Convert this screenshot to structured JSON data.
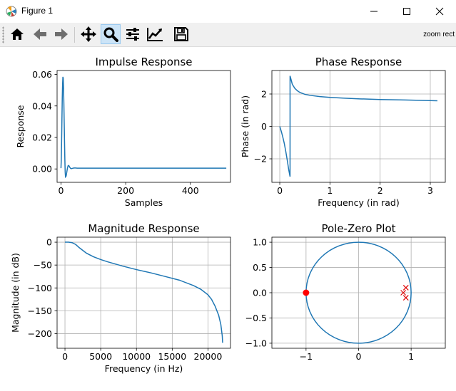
{
  "window": {
    "title": "Figure 1",
    "app_icon": "matplotlib-icon",
    "controls": [
      "minimize-icon",
      "maximize-icon",
      "close-icon"
    ]
  },
  "toolbar": {
    "buttons": [
      {
        "name": "home-button",
        "icon": "home-icon",
        "active": false
      },
      {
        "name": "back-button",
        "icon": "arrow-left-icon",
        "active": false
      },
      {
        "name": "forward-button",
        "icon": "arrow-right-icon",
        "active": false
      },
      {
        "name": "pan-button",
        "icon": "move-icon",
        "active": false
      },
      {
        "name": "zoom-button",
        "icon": "magnifier-icon",
        "active": true
      },
      {
        "name": "subplots-button",
        "icon": "sliders-icon",
        "active": false
      },
      {
        "name": "edit-axes-button",
        "icon": "line-chart-icon",
        "active": false
      },
      {
        "name": "save-button",
        "icon": "floppy-disk-icon",
        "active": false
      }
    ],
    "mode_text": "zoom rect"
  },
  "colors": {
    "line": "#1f77b4",
    "zero": "#ff0000",
    "pole": "#dd0000",
    "grid": "#b0b0b0",
    "active_button": "#cce4f7"
  },
  "chart_data": [
    {
      "type": "line",
      "title": "Impulse Response",
      "xlabel": "Samples",
      "ylabel": "Response",
      "xlim": [
        -12,
        524
      ],
      "ylim": [
        -0.0085,
        0.0625
      ],
      "xticks": [
        0,
        200,
        400
      ],
      "xtick_labels": [
        "0",
        "200",
        "400"
      ],
      "yticks": [
        0,
        0.02,
        0.04,
        0.06
      ],
      "ytick_labels": [
        "0.00",
        "0.02",
        "0.04",
        "0.06"
      ],
      "grid": false,
      "series": [
        {
          "x": [
            0,
            1,
            2,
            3,
            4,
            5,
            6,
            7,
            8,
            9,
            10,
            11,
            12,
            13,
            14,
            16,
            18,
            20,
            22,
            24,
            26,
            28,
            30,
            33,
            36,
            40,
            45,
            50,
            60,
            80,
            120,
            200,
            300,
            400,
            511
          ],
          "y": [
            0.0005,
            0.006,
            0.018,
            0.032,
            0.045,
            0.054,
            0.0585,
            0.0575,
            0.051,
            0.041,
            0.029,
            0.017,
            0.006,
            -0.002,
            -0.005,
            -0.0045,
            -0.002,
            0.0005,
            0.002,
            0.0022,
            0.0015,
            0.0008,
            0.0003,
            0.0002,
            0.0004,
            0.0006,
            0.0006,
            0.0005,
            0.0005,
            0.0005,
            0.0005,
            0.0005,
            0.0005,
            0.0005,
            0.0005
          ]
        }
      ]
    },
    {
      "type": "line",
      "title": "Phase Response",
      "xlabel": "Frequency (in rad)",
      "ylabel": "Phase (in rad)",
      "xlim": [
        -0.157,
        3.299
      ],
      "ylim": [
        -3.45,
        3.45
      ],
      "xticks": [
        0,
        1,
        2,
        3
      ],
      "xtick_labels": [
        "0",
        "1",
        "2",
        "3"
      ],
      "yticks": [
        -2,
        0,
        2
      ],
      "ytick_labels": [
        "−2",
        "0",
        "2"
      ],
      "grid": true,
      "series": [
        {
          "x": [
            0,
            0.03,
            0.06,
            0.09,
            0.12,
            0.15,
            0.18,
            0.205,
            0.2051,
            0.22,
            0.25,
            0.3,
            0.35,
            0.4,
            0.5,
            0.6,
            0.8,
            1.0,
            1.3,
            1.6,
            2.0,
            2.5,
            3.1416
          ],
          "y": [
            0,
            -0.3,
            -0.65,
            -1.05,
            -1.55,
            -2.1,
            -2.7,
            -3.1,
            3.12,
            2.95,
            2.6,
            2.35,
            2.2,
            2.1,
            1.98,
            1.92,
            1.84,
            1.79,
            1.74,
            1.7,
            1.66,
            1.63,
            1.58
          ]
        }
      ]
    },
    {
      "type": "line",
      "title": "Magnitude Response",
      "xlabel": "Frequency (in Hz)",
      "ylabel": "Magnitude (in dB)",
      "xlim": [
        -1102,
        23152
      ],
      "ylim": [
        -232,
        11
      ],
      "xticks": [
        0,
        5000,
        10000,
        15000,
        20000
      ],
      "xtick_labels": [
        "0",
        "5000",
        "10000",
        "15000",
        "20000"
      ],
      "yticks": [
        0,
        -50,
        -100,
        -150,
        -200
      ],
      "ytick_labels": [
        "0",
        "−50",
        "−100",
        "−150",
        "−200"
      ],
      "grid": true,
      "series": [
        {
          "x": [
            0,
            500,
            1000,
            1500,
            2000,
            2500,
            3000,
            4000,
            5000,
            6000,
            8000,
            10000,
            12000,
            14000,
            16000,
            18000,
            19000,
            20000,
            20500,
            21000,
            21500,
            21800,
            22000,
            22050
          ],
          "y": [
            0,
            0,
            -1,
            -5,
            -12,
            -18,
            -24,
            -32,
            -38,
            -43,
            -52,
            -60,
            -67,
            -75,
            -83,
            -95,
            -103,
            -115,
            -125,
            -140,
            -160,
            -180,
            -205,
            -220
          ]
        }
      ]
    },
    {
      "type": "scatter",
      "title": "Pole-Zero Plot",
      "xlabel": "",
      "ylabel": "",
      "xlim": [
        -1.65,
        1.65
      ],
      "ylim": [
        -1.1,
        1.1
      ],
      "xticks": [
        -1,
        0,
        1
      ],
      "xtick_labels": [
        "−1",
        "0",
        "1"
      ],
      "yticks": [
        -1.0,
        -0.5,
        0.0,
        0.5,
        1.0
      ],
      "ytick_labels": [
        "−1.0",
        "−0.5",
        "0.0",
        "0.5",
        "1.0"
      ],
      "grid": true,
      "unit_circle": true,
      "zeros": [
        {
          "x": -1.0,
          "y": 0.0
        }
      ],
      "poles": [
        {
          "x": 0.9,
          "y": 0.1
        },
        {
          "x": 0.85,
          "y": 0.0
        },
        {
          "x": 0.9,
          "y": -0.1
        }
      ]
    }
  ]
}
